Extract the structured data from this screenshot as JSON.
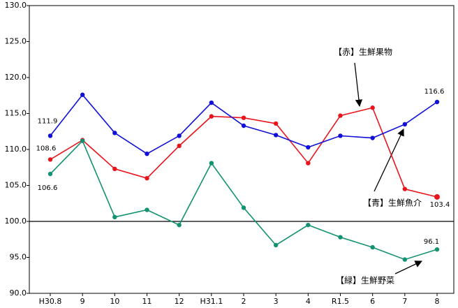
{
  "chart_data": {
    "type": "line",
    "categories": [
      "H30.8",
      "9",
      "10",
      "11",
      "12",
      "H31.1",
      "2",
      "3",
      "4",
      "R1.5",
      "6",
      "7",
      "8"
    ],
    "ylim": [
      90,
      130
    ],
    "yticks": [
      {
        "value": 90,
        "label": "90.0"
      },
      {
        "value": 95,
        "label": "95.0"
      },
      {
        "value": 100,
        "label": "100.0"
      },
      {
        "value": 105,
        "label": "105.0"
      },
      {
        "value": 110,
        "label": "110.0"
      },
      {
        "value": 115,
        "label": "115.0"
      },
      {
        "value": 120,
        "label": "120.0"
      },
      {
        "value": 125,
        "label": "125.0"
      },
      {
        "value": 130,
        "label": "130.0"
      }
    ],
    "baseline": 100,
    "series": [
      {
        "name": "【赤】生鮮果物",
        "color": "#e8141c",
        "values": [
          108.6,
          111.3,
          107.3,
          106.0,
          110.5,
          114.6,
          114.4,
          113.6,
          108.1,
          114.7,
          115.8,
          104.5,
          103.4
        ]
      },
      {
        "name": "【青】生鮮魚介",
        "color": "#1010d8",
        "values": [
          111.9,
          117.6,
          112.3,
          109.4,
          111.9,
          116.5,
          113.3,
          112.0,
          110.3,
          111.9,
          111.6,
          113.5,
          116.6
        ]
      },
      {
        "name": "【緑】生鮮野菜",
        "color": "#129270",
        "values": [
          106.6,
          111.2,
          100.6,
          101.6,
          99.5,
          108.1,
          101.9,
          96.7,
          99.5,
          97.8,
          96.4,
          94.7,
          96.1
        ]
      }
    ]
  }
}
